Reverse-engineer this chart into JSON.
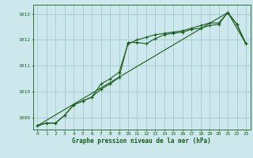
{
  "background_color": "#cce8ed",
  "grid_color": "#aacdd4",
  "line_color": "#1a5c1a",
  "title": "Graphe pression niveau de la mer (hPa)",
  "xlim": [
    -0.5,
    23.5
  ],
  "ylim": [
    1008.55,
    1013.35
  ],
  "yticks": [
    1009,
    1010,
    1011,
    1012,
    1013
  ],
  "xticks": [
    0,
    1,
    2,
    3,
    4,
    5,
    6,
    7,
    8,
    9,
    10,
    11,
    12,
    13,
    14,
    15,
    16,
    17,
    18,
    19,
    20,
    21,
    22,
    23
  ],
  "series1_x": [
    0,
    1,
    2,
    3,
    4,
    5,
    6,
    7,
    8,
    9,
    10,
    11,
    12,
    13,
    14,
    15,
    16,
    17,
    18,
    19,
    20,
    21,
    22,
    23
  ],
  "series1_y": [
    1008.7,
    1008.8,
    1008.8,
    1009.1,
    1009.5,
    1009.65,
    1009.8,
    1010.1,
    1010.3,
    1010.55,
    1011.9,
    1011.9,
    1011.85,
    1012.05,
    1012.2,
    1012.25,
    1012.3,
    1012.4,
    1012.45,
    1012.55,
    1012.6,
    1013.05,
    1012.6,
    1011.85
  ],
  "series2_x": [
    0,
    1,
    2,
    3,
    4,
    5,
    6,
    7,
    8,
    9,
    10,
    11,
    12,
    13,
    14,
    15,
    16,
    17,
    18,
    19,
    20,
    21,
    22,
    23
  ],
  "series2_y": [
    1008.7,
    1008.8,
    1008.8,
    1009.1,
    1009.5,
    1009.65,
    1009.8,
    1010.3,
    1010.5,
    1010.75,
    1011.85,
    1012.0,
    1012.1,
    1012.2,
    1012.25,
    1012.3,
    1012.35,
    1012.45,
    1012.55,
    1012.65,
    1012.65,
    1013.05,
    1012.6,
    1011.85
  ],
  "series3_x": [
    0,
    21,
    23
  ],
  "series3_y": [
    1008.7,
    1013.05,
    1011.85
  ]
}
